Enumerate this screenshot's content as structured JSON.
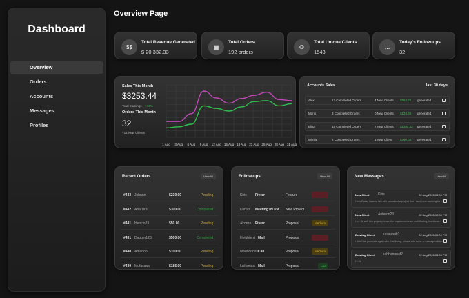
{
  "sidebar": {
    "brand": "Dashboard",
    "items": [
      {
        "label": "Overview"
      },
      {
        "label": "Orders"
      },
      {
        "label": "Accounts"
      },
      {
        "label": "Messages"
      },
      {
        "label": "Profiles"
      }
    ]
  },
  "page_title": "Overview Page",
  "stats": [
    {
      "icon": "dollar-icon",
      "glyph": "$$",
      "label": "Total Revenue Generated",
      "value": "$ 20,332.33"
    },
    {
      "icon": "truck-icon",
      "glyph": "▦",
      "label": "Total Orders",
      "value": "192 orders"
    },
    {
      "icon": "users-icon",
      "glyph": "⚇",
      "label": "Total Unique Clients",
      "value": "1543"
    },
    {
      "icon": "chat-icon",
      "glyph": "…",
      "label": "Today's Follow-ups",
      "value": "32"
    }
  ],
  "sales": {
    "title": "Sales This Month",
    "amount": "$3253.44",
    "earnings_label": "Total Earnings",
    "earnings_change": "+ 30%",
    "orders_title": "Orders This Month",
    "orders_value": "32",
    "new_clients": "+12 New Clients"
  },
  "chart_data": {
    "type": "line",
    "categories": [
      "1 Aug",
      "3 Aug",
      "6 Aug",
      "9 Aug",
      "12 Aug",
      "15 Aug",
      "18 Aug",
      "21 Aug",
      "25 Aug",
      "28 Aug",
      "31 Aug"
    ],
    "series": [
      {
        "values": [
          30,
          30,
          45,
          88,
          75,
          65,
          74,
          80,
          86,
          72,
          70
        ]
      },
      {
        "values": [
          18,
          20,
          25,
          60,
          55,
          50,
          58,
          68,
          70,
          60,
          64
        ]
      }
    ],
    "ylim": [
      0,
      100
    ],
    "grid": true,
    "colors": [
      "#c048b8",
      "#2fbf4f"
    ]
  },
  "accounts": {
    "title": "Accounts Sales",
    "period": "last 30 days",
    "rows": [
      {
        "name": "Alex",
        "orders": "12 Completed Orders",
        "clients": "4 New Clients",
        "amount": "$554.22",
        "suffix": "generated"
      },
      {
        "name": "Mario",
        "orders": "3 Completed Orders",
        "clients": "0 New Clients",
        "amount": "$124.66",
        "suffix": "generated"
      },
      {
        "name": "Elisa",
        "orders": "15 Completed Orders",
        "clients": "7 New Clients",
        "amount": "$1344.52",
        "suffix": "generated"
      },
      {
        "name": "Mimia",
        "orders": "2 Completed Orders",
        "clients": "1 New Client",
        "amount": "$760.06",
        "suffix": "generated"
      }
    ]
  },
  "recent_orders": {
    "title": "Recent Orders",
    "view_all": "View All",
    "rows": [
      {
        "id": "#443",
        "name": "Johnnn",
        "price": "$230.00",
        "status": "Pending",
        "color": "#c8a23a"
      },
      {
        "id": "#442",
        "name": "Ana Tira",
        "price": "$300.00",
        "status": "Completed",
        "color": "#2e9d3c"
      },
      {
        "id": "#441",
        "name": "Hencio23",
        "price": "$50.00",
        "status": "Pending",
        "color": "#c8a23a"
      },
      {
        "id": "#431",
        "name": "Dagger123",
        "price": "$500.00",
        "status": "Completed",
        "color": "#2e9d3c"
      },
      {
        "id": "#440",
        "name": "Amanoo",
        "price": "$100.00",
        "status": "Pending",
        "color": "#c8a23a"
      },
      {
        "id": "#439",
        "name": "Mufasaaa",
        "price": "$185.00",
        "status": "Pending",
        "color": "#c8a23a"
      }
    ]
  },
  "followups": {
    "title": "Follow-ups",
    "view_all": "View All",
    "rows": [
      {
        "name": "Kiris",
        "via": "Fiverr",
        "type": "Feature",
        "priority": "",
        "bg": "#5a1e24",
        "fg": "#e06070"
      },
      {
        "name": "Kuroki",
        "via": "Meeting 09 PM",
        "type": "New Project",
        "priority": "",
        "bg": "#5a1e24",
        "fg": "#e06070"
      },
      {
        "name": "Akorrre",
        "via": "Fiverr",
        "type": "Proposal",
        "priority": "Medium",
        "bg": "#4b3e12",
        "fg": "#d6ad35"
      },
      {
        "name": "Heighteni",
        "via": "Mail",
        "type": "Proposal",
        "priority": "",
        "bg": "#5a1e24",
        "fg": "#e06070"
      },
      {
        "name": "Maddonnas",
        "via": "Call",
        "type": "Proposal",
        "priority": "Medium",
        "bg": "#4b3e12",
        "fg": "#d6ad35"
      },
      {
        "name": "lukkanias",
        "via": "Mail",
        "type": "Proposal",
        "priority": "Low",
        "bg": "#1d4022",
        "fg": "#3fbf55"
      }
    ]
  },
  "messages": {
    "title": "New Messages",
    "view_all": "View All",
    "items": [
      {
        "tag": "New Client",
        "name": "Kiris",
        "time": "02 Aug 2026 09:00 PM",
        "body": "Hello Diana I wanna talk with you about a project that I have been working for..."
      },
      {
        "tag": "New Client",
        "name": "Anteron23",
        "time": "02 Aug 2026 10:00 PM",
        "body": "Hey Sir with this project please, the requirements are as following, functional..."
      },
      {
        "tag": "Existing Client",
        "name": "kasaureitt2",
        "time": "02 Aug 2026 06:09 PM",
        "body": "I didn't fail your side again after that lineup, please add some a message within..."
      },
      {
        "tag": "Existing Client",
        "name": "sahhannnaf2",
        "time": "02 Aug 2026 05:00 PM",
        "body": "Hi Sir"
      }
    ]
  }
}
